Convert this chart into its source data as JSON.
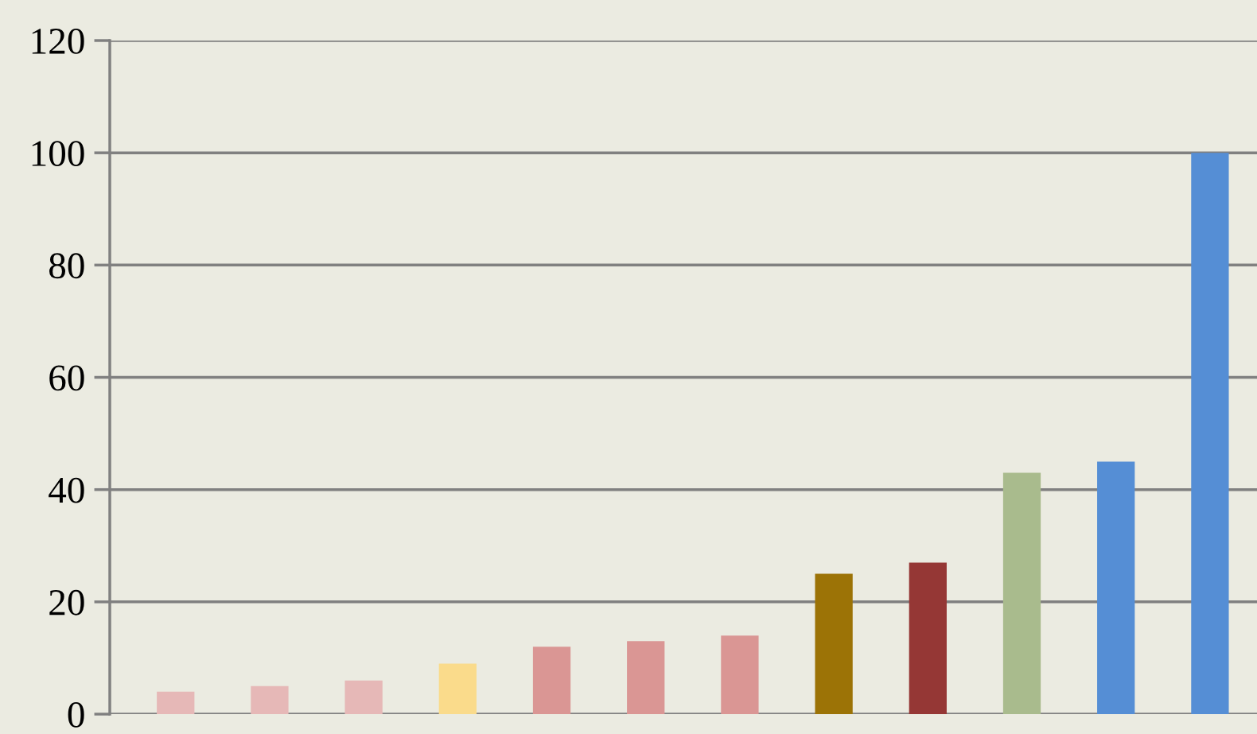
{
  "chart_data": {
    "type": "bar",
    "categories": [
      null,
      null,
      null,
      null,
      null,
      null,
      null,
      null,
      null,
      null,
      null,
      null
    ],
    "values": [
      4,
      5,
      6,
      9,
      12,
      13,
      14,
      25,
      27,
      43,
      45,
      100
    ],
    "colors": [
      "#e6b8b7",
      "#e6b8b7",
      "#e6b8b7",
      "#fadb8b",
      "#da9694",
      "#da9694",
      "#da9694",
      "#9c7306",
      "#953735",
      "#a9bb8d",
      "#558ed5",
      "#558ed5"
    ],
    "ylim": [
      0,
      120
    ],
    "yticks": [
      0,
      20,
      40,
      60,
      80,
      100,
      120
    ],
    "grid": "y"
  }
}
